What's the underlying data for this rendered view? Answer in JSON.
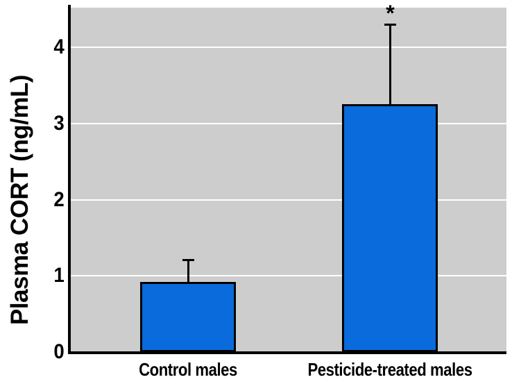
{
  "chart_data": {
    "type": "bar",
    "ylabel": "Plasma CORT (ng/mL)",
    "xlabel": "",
    "categories": [
      "Control males",
      "Pesticide-treated males"
    ],
    "values": [
      0.92,
      3.25
    ],
    "error_bars": {
      "direction": "upper",
      "values": [
        0.29,
        1.05
      ]
    },
    "significance_labels": [
      "",
      "*"
    ],
    "yticks": [
      0,
      1,
      2,
      3,
      4
    ],
    "ylim": [
      0,
      4.52
    ],
    "grid": "horizontal-white-lines-at-integer-ticks",
    "legend": "none",
    "colors": {
      "bar_fill": "#0a6bdc",
      "bar_border": "#000000",
      "plot_background": "#cdcdcd",
      "gridline": "#ffffff",
      "axis": "#000000",
      "text": "#000000",
      "page_background": "#ffffff"
    }
  }
}
